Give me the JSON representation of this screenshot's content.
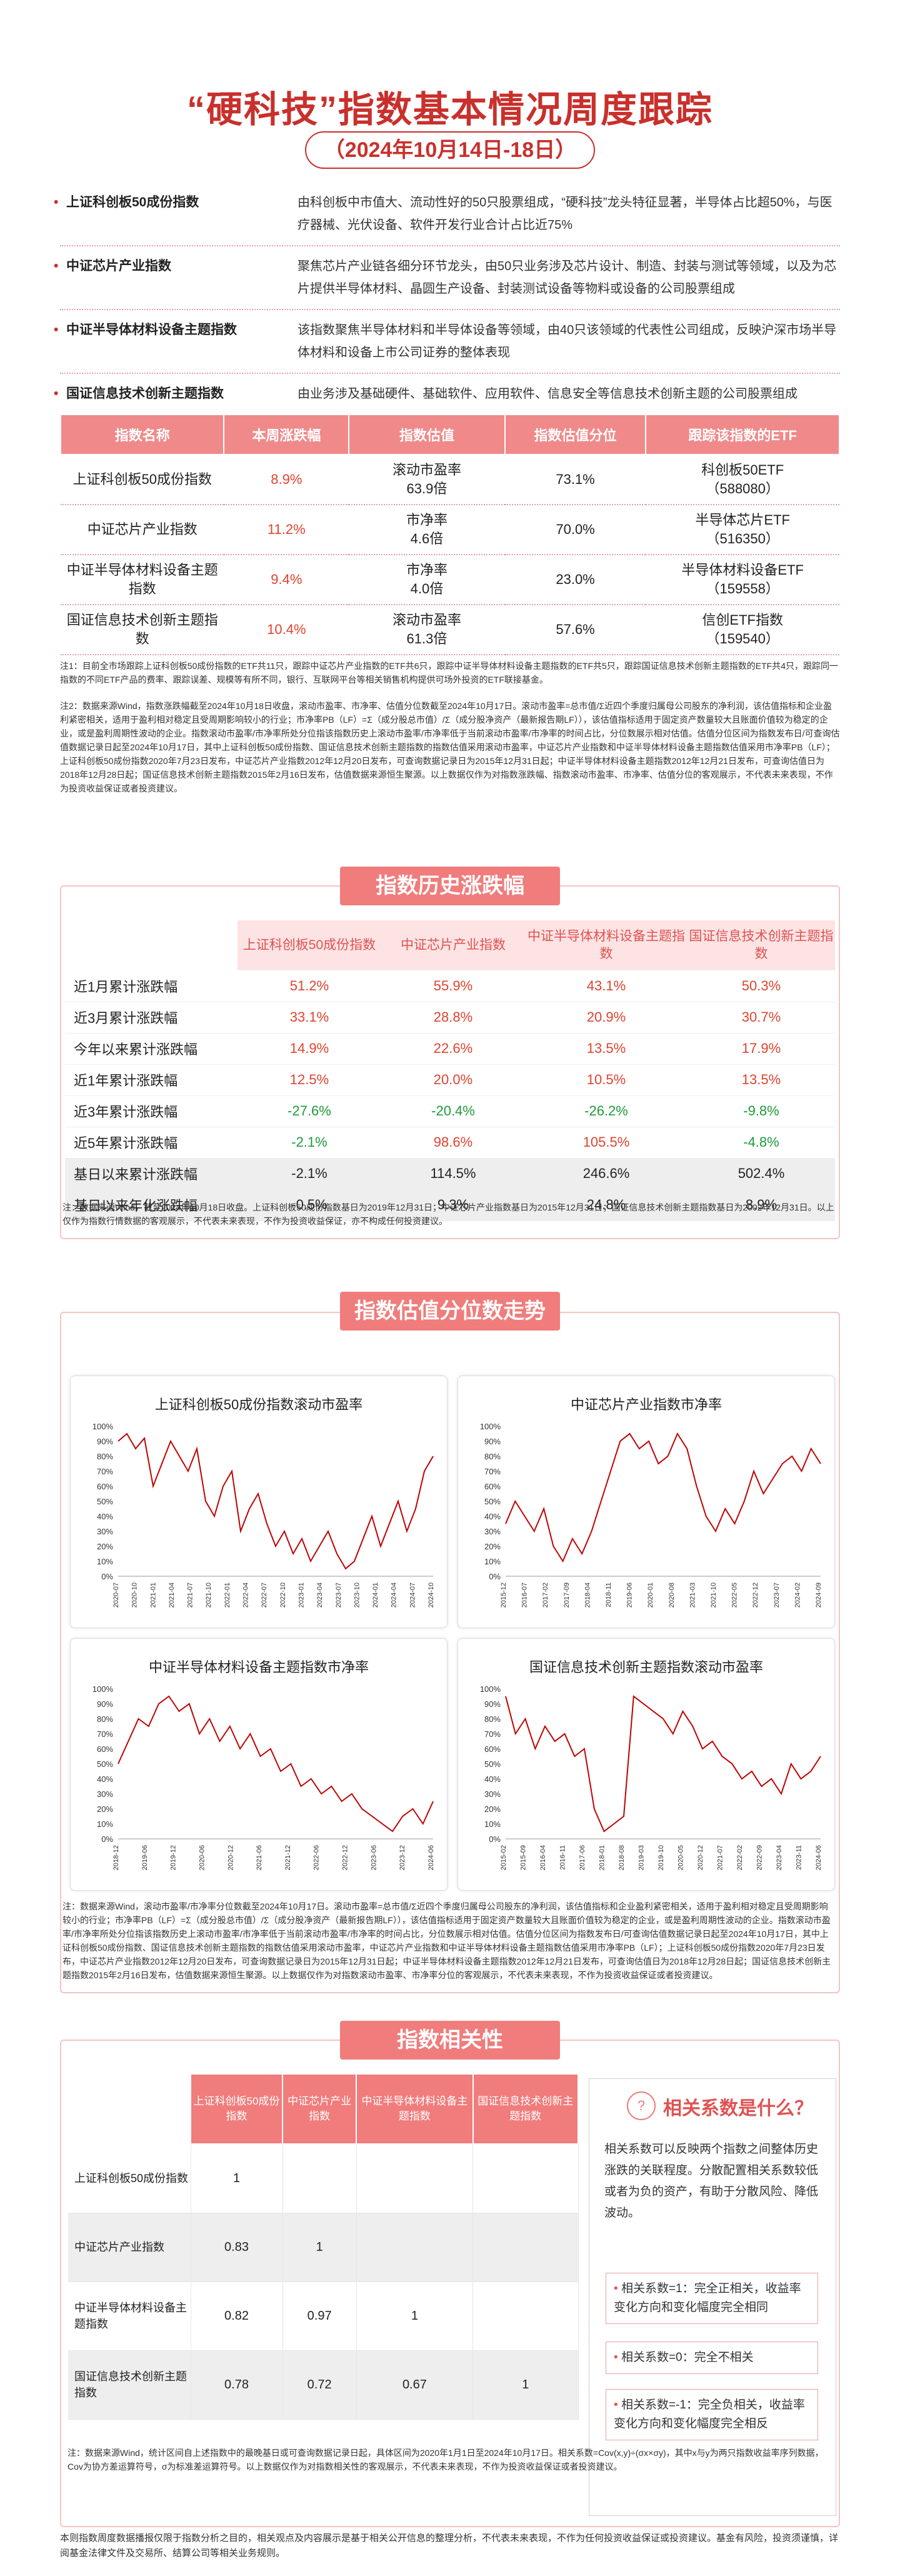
{
  "title": "“硬科技”指数基本情况周度跟踪",
  "subtitle": "（2024年10月14日-18日）",
  "index_desc": [
    {
      "name": "上证科创板50成份指数",
      "text": "由科创板中市值大、流动性好的50只股票组成，“硬科技”龙头特征显著，半导体占比超50%，与医疗器械、光伏设备、软件开发行业合计占比近75%"
    },
    {
      "name": "中证芯片产业指数",
      "text": "聚焦芯片产业链各细分环节龙头，由50只业务涉及芯片设计、制造、封装与测试等领域，以及为芯片提供半导体材料、晶圆生产设备、封装测试设备等物料或设备的公司股票组成"
    },
    {
      "name": "中证半导体材料设备主题指数",
      "text": "该指数聚焦半导体材料和半导体设备等领域，由40只该领域的代表性公司组成，反映沪深市场半导体材料和设备上市公司证券的整体表现"
    },
    {
      "name": "国证信息技术创新主题指数",
      "text": "由业务涉及基础硬件、基础软件、应用软件、信息安全等信息技术创新主题的公司股票组成"
    }
  ],
  "table1": {
    "headers": [
      "指数名称",
      "本周涨跌幅",
      "指数估值",
      "指数估值分位",
      "跟踪该指数的ETF"
    ],
    "rows": [
      {
        "name": "上证科创板50成份指数",
        "change": "8.9%",
        "val1": "滚动市盈率",
        "val2": "63.9倍",
        "pct": "73.1%",
        "etf1": "科创板50ETF",
        "etf2": "（588080）"
      },
      {
        "name": "中证芯片产业指数",
        "change": "11.2%",
        "val1": "市净率",
        "val2": "4.6倍",
        "pct": "70.0%",
        "etf1": "半导体芯片ETF",
        "etf2": "（516350）"
      },
      {
        "name": "中证半导体材料设备主题指数",
        "change": "9.4%",
        "val1": "市净率",
        "val2": "4.0倍",
        "pct": "23.0%",
        "etf1": "半导体材料设备ETF",
        "etf2": "（159558）"
      },
      {
        "name": "国证信息技术创新主题指数",
        "change": "10.4%",
        "val1": "滚动市盈率",
        "val2": "61.3倍",
        "pct": "57.6%",
        "etf1": "信创ETF指数",
        "etf2": "（159540）"
      }
    ]
  },
  "note1": "注1：目前全市场跟踪上证科创板50成份指数的ETF共11只，跟踪中证芯片产业指数的ETF共6只，跟踪中证半导体材料设备主题指数的ETF共5只，跟踪国证信息技术创新主题指数的ETF共4只，跟踪同一指数的不同ETF产品的费率、跟踪误差、规模等有所不同，银行、互联网平台等相关销售机构提供可场外投资的ETF联接基金。",
  "note2": "注2：数据来源Wind，指数涨跌幅截至2024年10月18日收盘，滚动市盈率、市净率、估值分位数截至2024年10月17日。滚动市盈率=总市值/Σ近四个季度归属母公司股东的净利润，该估值指标和企业盈利紧密相关，适用于盈利相对稳定且受周期影响较小的行业；市净率PB（LF）=Σ（成分股总市值）/Σ（成分股净资产（最新报告期LF）），该估值指标适用于固定资产数量较大且账面价值较为稳定的企业，或是盈利周期性波动的企业。指数滚动市盈率/市净率所处分位指该指数历史上滚动市盈率/市净率低于当前滚动市盈率/市净率的时间占比，分位数展示相对估值。估值分位区间为指数发布日/可查询估值数据记录日起至2024年10月17日，其中上证科创板50成份指数、国证信息技术创新主题指数的指数估值采用滚动市盈率，中证芯片产业指数和中证半导体材料设备主题指数估值采用市净率PB（LF）；上证科创板50成份指数2020年7月23日发布，中证芯片产业指数2012年12月20日发布，可查询数据记录日为2015年12月31日起；中证半导体材料设备主题指数2012年12月21日发布，可查询估值日为2018年12月28日起；国证信息技术创新主题指数2015年2月16日发布，估值数据来源恒生聚源。以上数据仅作为对指数涨跌幅、指数滚动市盈率、市净率、估值分位的客观展示，不代表未来表现，不作为投资收益保证或者投资建议。",
  "sec2_title": "指数历史涨跌幅",
  "table2": {
    "headers": [
      "",
      "上证科创板50成份指数",
      "中证芯片产业指数",
      "中证半导体材料设备主题指数",
      "国证信息技术创新主题指数"
    ],
    "rows": [
      {
        "label": "近1月累计涨跌幅",
        "v": [
          "51.2%",
          "55.9%",
          "43.1%",
          "50.3%"
        ],
        "c": [
          "pos",
          "pos",
          "pos",
          "pos"
        ]
      },
      {
        "label": "近3月累计涨跌幅",
        "v": [
          "33.1%",
          "28.8%",
          "20.9%",
          "30.7%"
        ],
        "c": [
          "pos",
          "pos",
          "pos",
          "pos"
        ]
      },
      {
        "label": "今年以来累计涨跌幅",
        "v": [
          "14.9%",
          "22.6%",
          "13.5%",
          "17.9%"
        ],
        "c": [
          "pos",
          "pos",
          "pos",
          "pos"
        ]
      },
      {
        "label": "近1年累计涨跌幅",
        "v": [
          "12.5%",
          "20.0%",
          "10.5%",
          "13.5%"
        ],
        "c": [
          "pos",
          "pos",
          "pos",
          "pos"
        ]
      },
      {
        "label": "近3年累计涨跌幅",
        "v": [
          "-27.6%",
          "-20.4%",
          "-26.2%",
          "-9.8%"
        ],
        "c": [
          "neg",
          "neg",
          "neg",
          "neg"
        ]
      },
      {
        "label": "近5年累计涨跌幅",
        "v": [
          "-2.1%",
          "98.6%",
          "105.5%",
          "-4.8%"
        ],
        "c": [
          "neg",
          "pos",
          "pos",
          "neg"
        ]
      },
      {
        "label": "基日以来累计涨跌幅",
        "v": [
          "-2.1%",
          "114.5%",
          "246.6%",
          "502.4%"
        ],
        "c": [
          "",
          "",
          "",
          ""
        ]
      },
      {
        "label": "基日以来年化涨跌幅",
        "v": [
          "-0.5%",
          "9.3%",
          "24.8%",
          "8.9%"
        ],
        "c": [
          "",
          "",
          "",
          ""
        ]
      }
    ]
  },
  "note3": "注：数据来源Wind，截至2024年10月18日收盘。上证科创板50成份指数基日为2019年12月31日；中证芯片产业指数基日为2015年12月31日；国证信息技术创新主题指数基日为2002年12月31日。以上仅作为指数行情数据的客观展示，不代表未来表现，不作为投资收益保证，亦不构成任何投资建议。",
  "sec3_title": "指数估值分位数走势",
  "charts": [
    {
      "title": "上证科创板50成份指数滚动市盈率",
      "yticks": [
        "100%",
        "90%",
        "80%",
        "70%",
        "60%",
        "50%",
        "40%",
        "30%",
        "20%",
        "10%",
        "0%"
      ],
      "xticks": [
        "2020-07",
        "2020-10",
        "2021-01",
        "2021-04",
        "2021-07",
        "2021-10",
        "2022-01",
        "2022-04",
        "2022-07",
        "2022-10",
        "2023-01",
        "2023-04",
        "2023-07",
        "2023-10",
        "2024-01",
        "2024-04",
        "2024-07",
        "2024-10"
      ]
    },
    {
      "title": "中证芯片产业指数市净率",
      "yticks": [
        "100%",
        "90%",
        "80%",
        "70%",
        "60%",
        "50%",
        "40%",
        "30%",
        "20%",
        "10%",
        "0%"
      ],
      "xticks": [
        "2015-12",
        "2016-07",
        "2017-02",
        "2017-09",
        "2018-04",
        "2018-11",
        "2019-06",
        "2020-01",
        "2020-08",
        "2021-03",
        "2021-10",
        "2022-05",
        "2022-12",
        "2023-07",
        "2024-02",
        "2024-09"
      ]
    },
    {
      "title": "中证半导体材料设备主题指数市净率",
      "yticks": [
        "100%",
        "90%",
        "80%",
        "70%",
        "60%",
        "50%",
        "40%",
        "30%",
        "20%",
        "10%",
        "0%"
      ],
      "xticks": [
        "2018-12",
        "2019-06",
        "2019-12",
        "2020-06",
        "2020-12",
        "2021-06",
        "2021-12",
        "2022-06",
        "2022-12",
        "2023-06",
        "2023-12",
        "2024-06"
      ]
    },
    {
      "title": "国证信息技术创新主题指数滚动市盈率",
      "yticks": [
        "100%",
        "90%",
        "80%",
        "70%",
        "60%",
        "50%",
        "40%",
        "30%",
        "20%",
        "10%",
        "0%"
      ],
      "xticks": [
        "2015-02",
        "2015-09",
        "2016-04",
        "2016-11",
        "2017-06",
        "2018-01",
        "2018-08",
        "2019-03",
        "2019-10",
        "2020-05",
        "2020-12",
        "2021-07",
        "2022-02",
        "2022-09",
        "2023-04",
        "2023-11",
        "2024-06"
      ]
    }
  ],
  "note4": "注：数据来源Wind，滚动市盈率/市净率分位数截至2024年10月17日。滚动市盈率=总市值/Σ近四个季度归属母公司股东的净利润，该估值指标和企业盈利紧密相关，适用于盈利相对稳定且受周期影响较小的行业；市净率PB（LF）=Σ（成分股总市值）/Σ（成分股净资产（最新报告期LF）），该估值指标适用于固定资产数量较大且账面价值较为稳定的企业，或是盈利周期性波动的企业。指数滚动市盈率/市净率所处分位指该指数历史上滚动市盈率/市净率低于当前滚动市盈率/市净率的时间占比，分位数展示相对估值。估值分位区间为指数发布日/可查询估值数据记录日起至2024年10月17日，其中上证科创板50成份指数、国证信息技术创新主题指数的指数估值采用滚动市盈率，中证芯片产业指数和中证半导体材料设备主题指数估值采用市净率PB（LF）；上证科创板50成份指数2020年7月23日发布，中证芯片产业指数2012年12月20日发布，可查询数据记录日为2015年12月31日起；中证半导体材料设备主题指数2012年12月21日发布，可查询估值日为2018年12月28日起；国证信息技术创新主题指数2015年2月16日发布，估值数据来源恒生聚源。以上数据仅作为对指数滚动市盈率、市净率分位的客观展示，不代表未来表现，不作为投资收益保证或者投资建议。",
  "sec4_title": "指数相关性",
  "table3": {
    "headers": [
      "",
      "上证科创板50成份指数",
      "中证芯片产业指数",
      "中证半导体材料设备主题指数",
      "国证信息技术创新主题指数"
    ],
    "rows": [
      {
        "label": "上证科创板50成份指数",
        "v": [
          "1",
          "",
          "",
          ""
        ]
      },
      {
        "label": "中证芯片产业指数",
        "v": [
          "0.83",
          "1",
          "",
          ""
        ]
      },
      {
        "label": "中证半导体材料设备主题指数",
        "v": [
          "0.82",
          "0.97",
          "1",
          ""
        ]
      },
      {
        "label": "国证信息技术创新主题指数",
        "v": [
          "0.78",
          "0.72",
          "0.67",
          "1"
        ]
      }
    ]
  },
  "corr": {
    "title": "相关系数是什么？",
    "text": "相关系数可以反映两个指数之间整体历史涨跌的关联程度。分散配置相关系数较低或者为负的资产，有助于分散风险、降低波动。",
    "items": [
      "相关系数=1：完全正相关，收益率变化方向和变化幅度完全相同",
      "相关系数=0：完全不相关",
      "相关系数=-1：完全负相关，收益率变化方向和变化幅度完全相反"
    ]
  },
  "note5": "注：数据来源Wind，统计区间自上述指数中的最晚基日或可查询数据记录日起，具体区间为2020年1月1日至2024年10月17日。相关系数=Cov(x,y)÷(σx×σy)，其中x与y为两只指数收益率序列数据，Cov为协方差运算符号，σ为标准差运算符号。以上数据仅作为对指数相关性的客观展示，不代表未来表现，不作为投资收益保证或者投资建议。",
  "footer": "本则指数周度数据播报仅限于指数分析之目的，相关观点及内容展示是基于相关公开信息的整理分析，不代表未来表现，不作为任何投资收益保证或投资建议。基金有风险，投资须谨慎，详阅基金法律文件及交易所、结算公司等相关业务规则。"
}
